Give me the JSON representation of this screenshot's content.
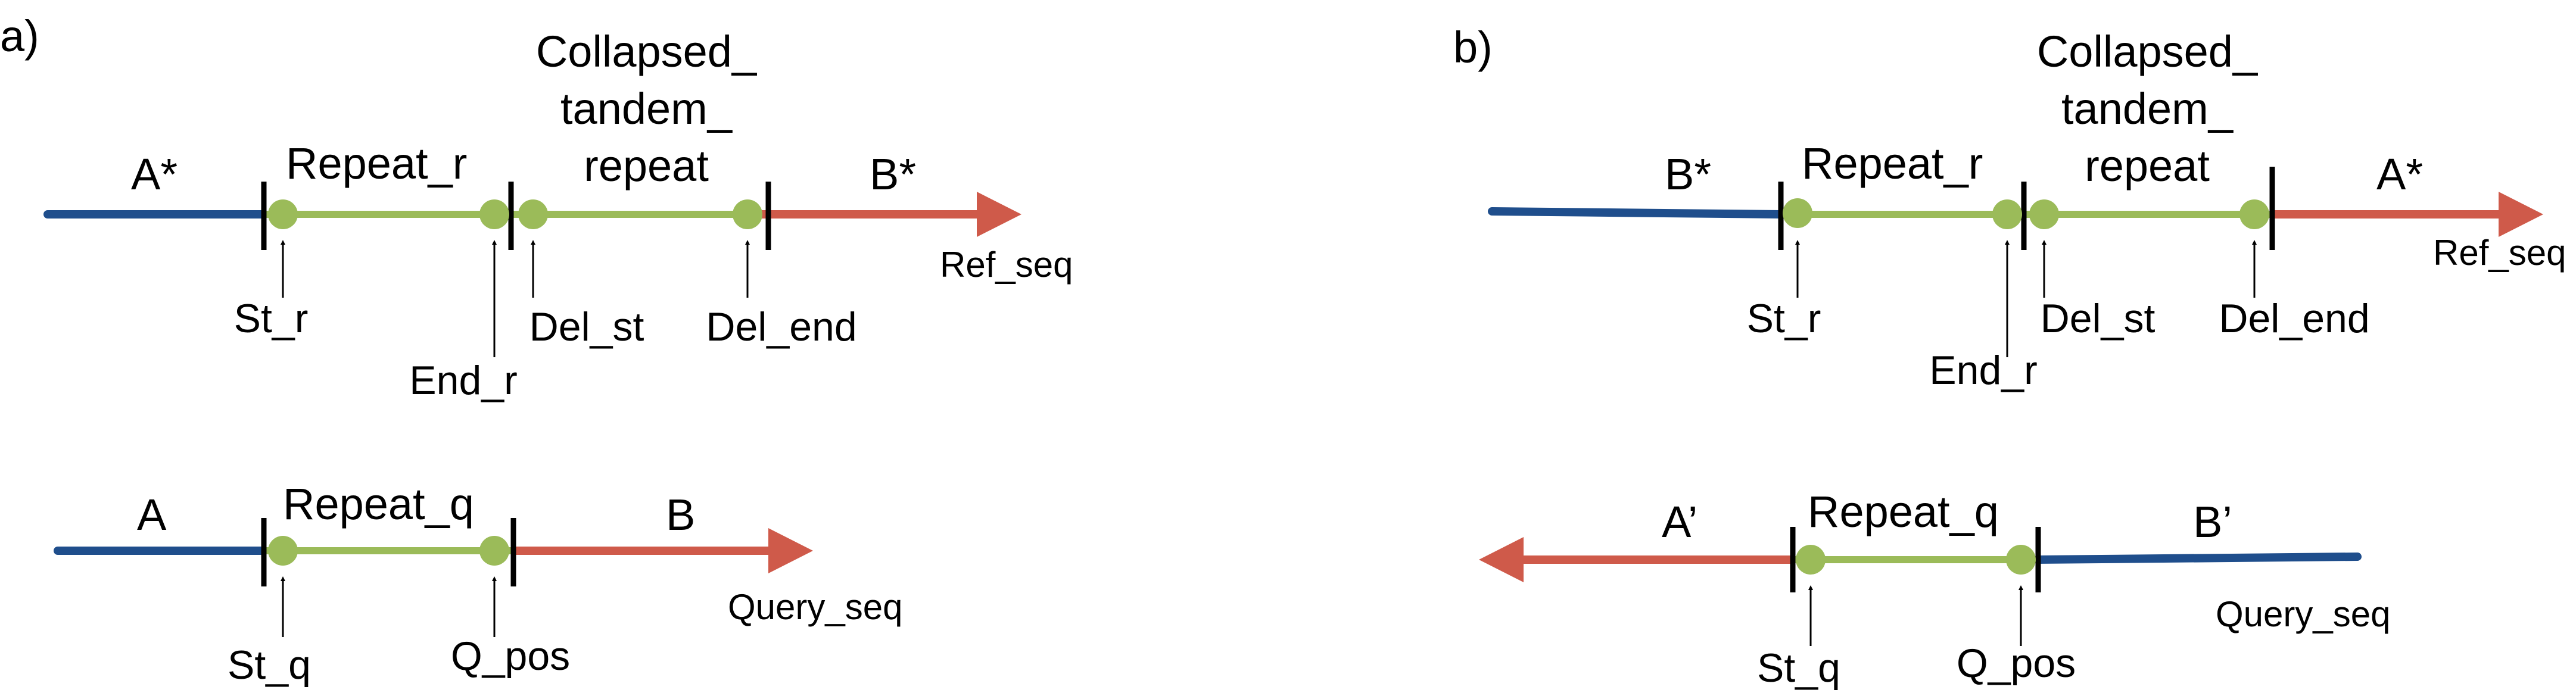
{
  "colors": {
    "blue": "#1f4e8c",
    "red": "#cf5a4a",
    "green": "#9bbb59",
    "black": "#000000"
  },
  "panel_a": {
    "panel_label": "a)",
    "ref": {
      "segment_left": "A*",
      "segment_repeat": "Repeat_r",
      "collapsed_line1": "Collapsed_",
      "collapsed_line2": "tandem_",
      "collapsed_line3": "repeat",
      "segment_right": "B*",
      "seq_label": "Ref_seq",
      "markers": {
        "st": "St_r",
        "end": "End_r",
        "del_st": "Del_st",
        "del_end": "Del_end"
      }
    },
    "query": {
      "segment_left": "A",
      "segment_repeat": "Repeat_q",
      "segment_right": "B",
      "seq_label": "Query_seq",
      "markers": {
        "st": "St_q",
        "pos": "Q_pos"
      }
    }
  },
  "panel_b": {
    "panel_label": "b)",
    "ref": {
      "segment_left": "B*",
      "segment_repeat": "Repeat_r",
      "collapsed_line1": "Collapsed_",
      "collapsed_line2": "tandem_",
      "collapsed_line3": "repeat",
      "segment_right": "A*",
      "seq_label": "Ref_seq",
      "markers": {
        "st": "St_r",
        "end": "End_r",
        "del_st": "Del_st",
        "del_end": "Del_end"
      }
    },
    "query": {
      "segment_left": "A’",
      "segment_repeat": "Repeat_q",
      "segment_right": "B’",
      "seq_label": "Query_seq",
      "markers": {
        "st": "St_q",
        "pos": "Q_pos"
      }
    }
  }
}
